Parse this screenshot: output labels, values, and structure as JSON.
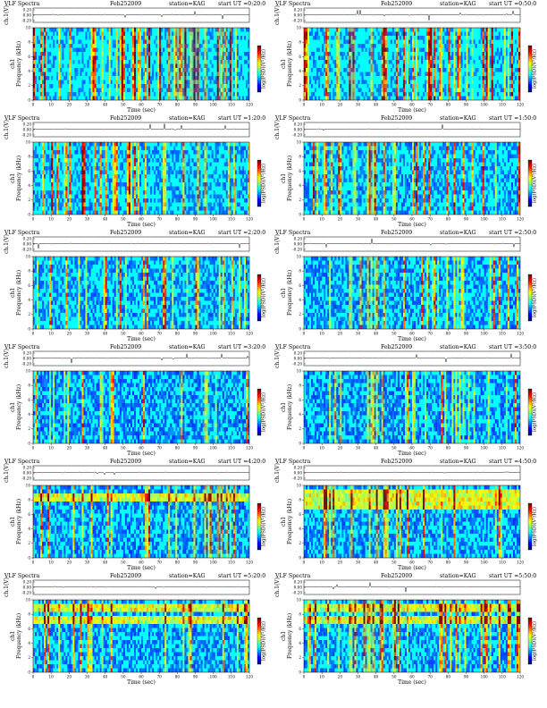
{
  "header": {
    "left_label": "VLF Spectra",
    "date": "Feb252009",
    "station": "station=KAG",
    "start_prefix": "start  UT"
  },
  "labels": {
    "waveform_axis": "ch.1(V)",
    "freq_axis_line1": "ch1",
    "freq_axis_line2": "Frequency (kHz)",
    "time_axis": "Time (sec)",
    "colorbar_label": "log(PSD)(V²/Hz)"
  },
  "chart_data": [
    {
      "type": "heatmap",
      "title": "VLF Spectra",
      "date": "Feb252009",
      "station": "station=KAG",
      "start_ut": "0:20:0",
      "xlabel": "Time (sec)",
      "ylabel": "Frequency (kHz)",
      "xlim": [
        0,
        120
      ],
      "ylim": [
        0,
        10
      ],
      "x_ticks": [
        0,
        10,
        20,
        30,
        40,
        50,
        60,
        70,
        80,
        90,
        100,
        110,
        120
      ],
      "y_ticks": [
        0,
        2,
        4,
        6,
        8,
        10
      ],
      "waveform_ylabel": "ch.1(V)",
      "waveform_ticks": [
        "0.20",
        "0.00",
        "-0.20"
      ],
      "colorbar_label": "log(PSD)(V²/Hz)",
      "activity": 0.8,
      "bands": []
    },
    {
      "type": "heatmap",
      "title": "VLF Spectra",
      "date": "Feb252009",
      "station": "station=KAG",
      "start_ut": "0:50:0",
      "xlabel": "Time (sec)",
      "ylabel": "Frequency (kHz)",
      "xlim": [
        0,
        120
      ],
      "ylim": [
        0,
        10
      ],
      "x_ticks": [
        0,
        10,
        20,
        30,
        40,
        50,
        60,
        70,
        80,
        90,
        100,
        110,
        120
      ],
      "y_ticks": [
        0,
        2,
        4,
        6,
        8,
        10
      ],
      "waveform_ylabel": "ch.1(V)",
      "waveform_ticks": [
        "0.20",
        "0.00",
        "-0.20"
      ],
      "colorbar_label": "log(PSD)(V²/Hz)",
      "activity": 0.75,
      "bands": []
    },
    {
      "type": "heatmap",
      "title": "VLF Spectra",
      "date": "Feb252009",
      "station": "station=KAG",
      "start_ut": "1:20:0",
      "xlabel": "Time (sec)",
      "ylabel": "Frequency (kHz)",
      "xlim": [
        0,
        120
      ],
      "ylim": [
        0,
        10
      ],
      "x_ticks": [
        0,
        10,
        20,
        30,
        40,
        50,
        60,
        70,
        80,
        90,
        100,
        110,
        120
      ],
      "y_ticks": [
        0,
        2,
        4,
        6,
        8,
        10
      ],
      "waveform_ylabel": "ch.1(V)",
      "waveform_ticks": [
        "0.20",
        "0.00",
        "-0.20"
      ],
      "colorbar_label": "log(PSD)(V²/Hz)",
      "activity": 0.6,
      "bands": []
    },
    {
      "type": "heatmap",
      "title": "VLF Spectra",
      "date": "Feb252009",
      "station": "station=KAG",
      "start_ut": "1:50:0",
      "xlabel": "Time (sec)",
      "ylabel": "Frequency (kHz)",
      "xlim": [
        0,
        120
      ],
      "ylim": [
        0,
        10
      ],
      "x_ticks": [
        0,
        10,
        20,
        30,
        40,
        50,
        60,
        70,
        80,
        90,
        100,
        110,
        120
      ],
      "y_ticks": [
        0,
        2,
        4,
        6,
        8,
        10
      ],
      "waveform_ylabel": "ch.1(V)",
      "waveform_ticks": [
        "0.20",
        "0.00",
        "-0.20"
      ],
      "colorbar_label": "log(PSD)(V²/Hz)",
      "activity": 0.5,
      "bands": []
    },
    {
      "type": "heatmap",
      "title": "VLF Spectra",
      "date": "Feb252009",
      "station": "station=KAG",
      "start_ut": "2:20:0",
      "xlabel": "Time (sec)",
      "ylabel": "Frequency (kHz)",
      "xlim": [
        0,
        120
      ],
      "ylim": [
        0,
        10
      ],
      "x_ticks": [
        0,
        10,
        20,
        30,
        40,
        50,
        60,
        70,
        80,
        90,
        100,
        110,
        120
      ],
      "y_ticks": [
        0,
        2,
        4,
        6,
        8,
        10
      ],
      "waveform_ylabel": "ch.1(V)",
      "waveform_ticks": [
        "0.20",
        "0.00",
        "-0.20"
      ],
      "colorbar_label": "log(PSD)(V²/Hz)",
      "activity": 0.4,
      "bands": []
    },
    {
      "type": "heatmap",
      "title": "VLF Spectra",
      "date": "Feb252009",
      "station": "station=KAG",
      "start_ut": "2:50:0",
      "xlabel": "Time (sec)",
      "ylabel": "Frequency (kHz)",
      "xlim": [
        0,
        120
      ],
      "ylim": [
        0,
        10
      ],
      "x_ticks": [
        0,
        10,
        20,
        30,
        40,
        50,
        60,
        70,
        80,
        90,
        100,
        110,
        120
      ],
      "y_ticks": [
        0,
        2,
        4,
        6,
        8,
        10
      ],
      "waveform_ylabel": "ch.1(V)",
      "waveform_ticks": [
        "0.20",
        "0.00",
        "-0.20"
      ],
      "colorbar_label": "log(PSD)(V²/Hz)",
      "activity": 0.35,
      "bands": []
    },
    {
      "type": "heatmap",
      "title": "VLF Spectra",
      "date": "Feb252009",
      "station": "station=KAG",
      "start_ut": "3:20:0",
      "xlabel": "Time (sec)",
      "ylabel": "Frequency (kHz)",
      "xlim": [
        0,
        120
      ],
      "ylim": [
        0,
        10
      ],
      "x_ticks": [
        0,
        10,
        20,
        30,
        40,
        50,
        60,
        70,
        80,
        90,
        100,
        110,
        120
      ],
      "y_ticks": [
        0,
        2,
        4,
        6,
        8,
        10
      ],
      "waveform_ylabel": "ch.1(V)",
      "waveform_ticks": [
        "0.20",
        "0.00",
        "-0.20"
      ],
      "colorbar_label": "log(PSD)(V²/Hz)",
      "activity": 0.25,
      "bands": []
    },
    {
      "type": "heatmap",
      "title": "VLF Spectra",
      "date": "Feb252009",
      "station": "station=KAG",
      "start_ut": "3:50:0",
      "xlabel": "Time (sec)",
      "ylabel": "Frequency (kHz)",
      "xlim": [
        0,
        120
      ],
      "ylim": [
        0,
        10
      ],
      "x_ticks": [
        0,
        10,
        20,
        30,
        40,
        50,
        60,
        70,
        80,
        90,
        100,
        110,
        120
      ],
      "y_ticks": [
        0,
        2,
        4,
        6,
        8,
        10
      ],
      "waveform_ylabel": "ch.1(V)",
      "waveform_ticks": [
        "0.20",
        "0.00",
        "-0.20"
      ],
      "colorbar_label": "log(PSD)(V²/Hz)",
      "activity": 0.25,
      "bands": []
    },
    {
      "type": "heatmap",
      "title": "VLF Spectra",
      "date": "Feb252009",
      "station": "station=KAG",
      "start_ut": "4:20:0",
      "xlabel": "Time (sec)",
      "ylabel": "Frequency (kHz)",
      "xlim": [
        0,
        120
      ],
      "ylim": [
        0,
        10
      ],
      "x_ticks": [
        0,
        10,
        20,
        30,
        40,
        50,
        60,
        70,
        80,
        90,
        100,
        110,
        120
      ],
      "y_ticks": [
        0,
        2,
        4,
        6,
        8,
        10
      ],
      "waveform_ylabel": "ch.1(V)",
      "waveform_ticks": [
        "0.20",
        "0.00",
        "-0.20"
      ],
      "colorbar_label": "log(PSD)(V²/Hz)",
      "activity": 0.3,
      "bands": [
        8.5
      ]
    },
    {
      "type": "heatmap",
      "title": "VLF Spectra",
      "date": "Feb252009",
      "station": "station=KAG",
      "start_ut": "4:50:0",
      "xlabel": "Time (sec)",
      "ylabel": "Frequency (kHz)",
      "xlim": [
        0,
        120
      ],
      "ylim": [
        0,
        10
      ],
      "x_ticks": [
        0,
        10,
        20,
        30,
        40,
        50,
        60,
        70,
        80,
        90,
        100,
        110,
        120
      ],
      "y_ticks": [
        0,
        2,
        4,
        6,
        8,
        10
      ],
      "waveform_ylabel": "ch.1(V)",
      "waveform_ticks": [
        "0.20",
        "0.00",
        "-0.20"
      ],
      "colorbar_label": "log(PSD)(V²/Hz)",
      "activity": 0.35,
      "bands": [
        9.0,
        7.5
      ]
    },
    {
      "type": "heatmap",
      "title": "VLF Spectra",
      "date": "Feb252009",
      "station": "station=KAG",
      "start_ut": "5:20:0",
      "xlabel": "Time (sec)",
      "ylabel": "Frequency (kHz)",
      "xlim": [
        0,
        120
      ],
      "ylim": [
        0,
        10
      ],
      "x_ticks": [
        0,
        10,
        20,
        30,
        40,
        50,
        60,
        70,
        80,
        90,
        100,
        110,
        120
      ],
      "y_ticks": [
        0,
        2,
        4,
        6,
        8,
        10
      ],
      "waveform_ylabel": "ch.1(V)",
      "waveform_ticks": [
        "0.20",
        "0.00",
        "-0.20"
      ],
      "colorbar_label": "log(PSD)(V²/Hz)",
      "activity": 0.35,
      "bands": [
        9.0,
        7.0
      ]
    },
    {
      "type": "heatmap",
      "title": "VLF Spectra",
      "date": "Feb252009",
      "station": "station=KAG",
      "start_ut": "5:50:0",
      "xlabel": "Time (sec)",
      "ylabel": "Frequency (kHz)",
      "xlim": [
        0,
        120
      ],
      "ylim": [
        0,
        10
      ],
      "x_ticks": [
        0,
        10,
        20,
        30,
        40,
        50,
        60,
        70,
        80,
        90,
        100,
        110,
        120
      ],
      "y_ticks": [
        0,
        2,
        4,
        6,
        8,
        10
      ],
      "waveform_ylabel": "ch.1(V)",
      "waveform_ticks": [
        "0.20",
        "0.00",
        "-0.20"
      ],
      "colorbar_label": "log(PSD)(V²/Hz)",
      "activity": 0.35,
      "bands": [
        9.0,
        7.0
      ]
    }
  ]
}
